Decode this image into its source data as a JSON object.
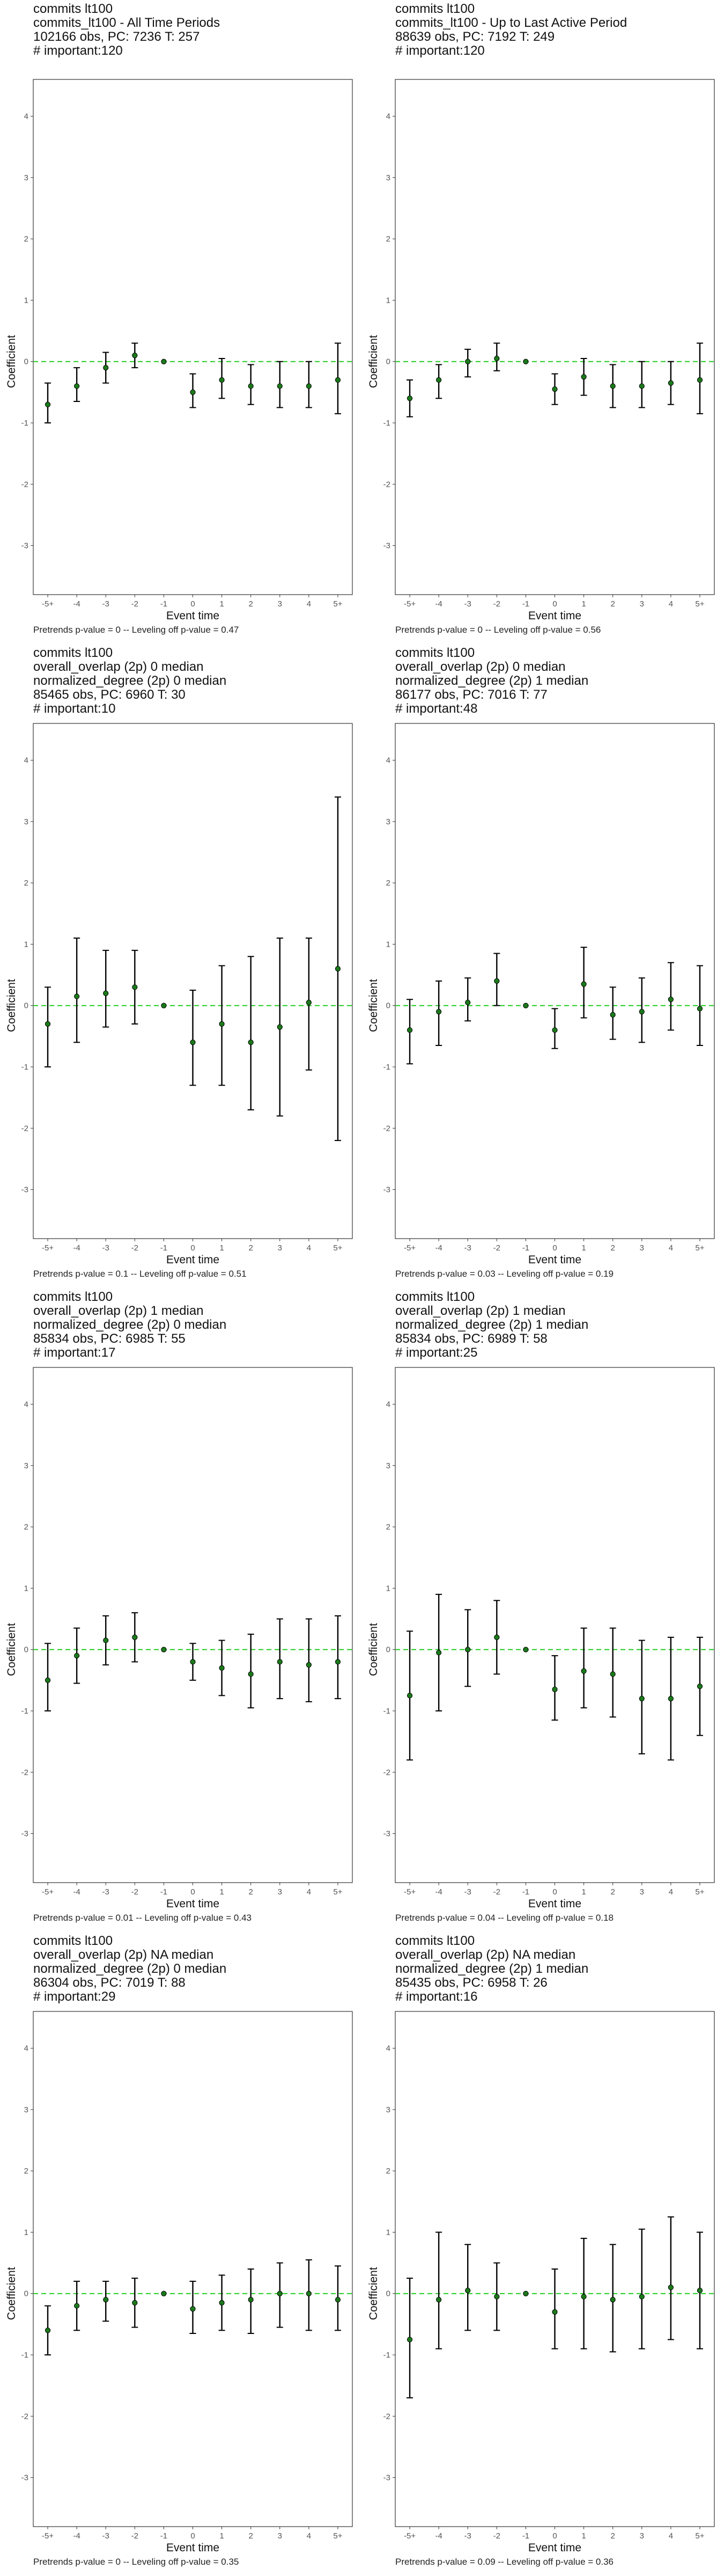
{
  "colors": {
    "zero_line": "#22cc22",
    "point_fill": "#1a7a1a",
    "error_bar": "#000000",
    "frame": "#333333"
  },
  "chart_data": [
    {
      "type": "scatter",
      "title_lines": [
        "commits lt100",
        "commits_lt100 - All Time Periods",
        "102166 obs, PC: 7236 T: 257",
        "# important:120"
      ],
      "footnote": "Pretrends p-value = 0 -- Leveling off p-value = 0.47",
      "xlabel": "Event time",
      "ylabel": "Coefficient",
      "categories": [
        "-5+",
        "-4",
        "-3",
        "-2",
        "-1",
        "0",
        "1",
        "2",
        "3",
        "4",
        "5+"
      ],
      "yticks": [
        -3,
        -2,
        -1,
        0,
        1,
        2,
        3,
        4
      ],
      "ylim": [
        -3.8,
        4.6
      ],
      "values": [
        -0.7,
        -0.4,
        -0.1,
        0.1,
        0.0,
        -0.5,
        -0.3,
        -0.4,
        -0.4,
        -0.4,
        -0.3
      ],
      "ci": [
        [
          -1.0,
          -0.35
        ],
        [
          -0.65,
          -0.1
        ],
        [
          -0.35,
          0.15
        ],
        [
          -0.1,
          0.3
        ],
        [
          0,
          0
        ],
        [
          -0.75,
          -0.2
        ],
        [
          -0.6,
          0.05
        ],
        [
          -0.7,
          -0.05
        ],
        [
          -0.75,
          0.0
        ],
        [
          -0.75,
          0.0
        ],
        [
          -0.85,
          0.3
        ]
      ],
      "zero_line": true,
      "grid": false
    },
    {
      "type": "scatter",
      "title_lines": [
        "commits lt100",
        "commits_lt100 - Up to Last Active Period",
        "88639 obs, PC: 7192 T: 249",
        "# important:120"
      ],
      "footnote": "Pretrends p-value = 0 -- Leveling off p-value = 0.56",
      "xlabel": "Event time",
      "ylabel": "Coefficient",
      "categories": [
        "-5+",
        "-4",
        "-3",
        "-2",
        "-1",
        "0",
        "1",
        "2",
        "3",
        "4",
        "5+"
      ],
      "yticks": [
        -3,
        -2,
        -1,
        0,
        1,
        2,
        3,
        4
      ],
      "ylim": [
        -3.8,
        4.6
      ],
      "values": [
        -0.6,
        -0.3,
        0.0,
        0.05,
        0.0,
        -0.45,
        -0.25,
        -0.4,
        -0.4,
        -0.35,
        -0.3
      ],
      "ci": [
        [
          -0.9,
          -0.3
        ],
        [
          -0.6,
          -0.05
        ],
        [
          -0.25,
          0.2
        ],
        [
          -0.15,
          0.3
        ],
        [
          0,
          0
        ],
        [
          -0.7,
          -0.2
        ],
        [
          -0.55,
          0.05
        ],
        [
          -0.75,
          -0.05
        ],
        [
          -0.75,
          0.0
        ],
        [
          -0.7,
          0.0
        ],
        [
          -0.85,
          0.3
        ]
      ],
      "zero_line": true,
      "grid": false
    },
    {
      "type": "scatter",
      "title_lines": [
        "commits lt100",
        "overall_overlap (2p) 0 median",
        "normalized_degree (2p) 0 median",
        "85465 obs, PC: 6960 T: 30",
        "# important:10"
      ],
      "footnote": "Pretrends p-value = 0.1 -- Leveling off p-value = 0.51",
      "xlabel": "Event time",
      "ylabel": "Coefficient",
      "categories": [
        "-5+",
        "-4",
        "-3",
        "-2",
        "-1",
        "0",
        "1",
        "2",
        "3",
        "4",
        "5+"
      ],
      "yticks": [
        -3,
        -2,
        -1,
        0,
        1,
        2,
        3,
        4
      ],
      "ylim": [
        -3.8,
        4.6
      ],
      "values": [
        -0.3,
        0.15,
        0.2,
        0.3,
        0.0,
        -0.6,
        -0.3,
        -0.6,
        -0.35,
        0.05,
        0.6
      ],
      "ci": [
        [
          -1.0,
          0.3
        ],
        [
          -0.6,
          1.1
        ],
        [
          -0.35,
          0.9
        ],
        [
          -0.3,
          0.9
        ],
        [
          0,
          0
        ],
        [
          -1.3,
          0.25
        ],
        [
          -1.3,
          0.65
        ],
        [
          -1.7,
          0.8
        ],
        [
          -1.8,
          1.1
        ],
        [
          -1.05,
          1.1
        ],
        [
          -2.2,
          3.4
        ]
      ],
      "zero_line": true,
      "grid": false
    },
    {
      "type": "scatter",
      "title_lines": [
        "commits lt100",
        "overall_overlap (2p) 0 median",
        "normalized_degree (2p) 1 median",
        "86177 obs, PC: 7016 T: 77",
        "# important:48"
      ],
      "footnote": "Pretrends p-value = 0.03 -- Leveling off p-value = 0.19",
      "xlabel": "Event time",
      "ylabel": "Coefficient",
      "categories": [
        "-5+",
        "-4",
        "-3",
        "-2",
        "-1",
        "0",
        "1",
        "2",
        "3",
        "4",
        "5+"
      ],
      "yticks": [
        -3,
        -2,
        -1,
        0,
        1,
        2,
        3,
        4
      ],
      "ylim": [
        -3.8,
        4.6
      ],
      "values": [
        -0.4,
        -0.1,
        0.05,
        0.4,
        0.0,
        -0.4,
        0.35,
        -0.15,
        -0.1,
        0.1,
        -0.05
      ],
      "ci": [
        [
          -0.95,
          0.1
        ],
        [
          -0.65,
          0.4
        ],
        [
          -0.25,
          0.45
        ],
        [
          0.0,
          0.85
        ],
        [
          0,
          0
        ],
        [
          -0.7,
          -0.05
        ],
        [
          -0.2,
          0.95
        ],
        [
          -0.55,
          0.3
        ],
        [
          -0.6,
          0.45
        ],
        [
          -0.4,
          0.7
        ],
        [
          -0.65,
          0.65
        ]
      ],
      "zero_line": true,
      "grid": false
    },
    {
      "type": "scatter",
      "title_lines": [
        "commits lt100",
        "overall_overlap (2p) 1 median",
        "normalized_degree (2p) 0 median",
        "85834 obs, PC: 6985 T: 55",
        "# important:17"
      ],
      "footnote": "Pretrends p-value = 0.01 -- Leveling off p-value = 0.43",
      "xlabel": "Event time",
      "ylabel": "Coefficient",
      "categories": [
        "-5+",
        "-4",
        "-3",
        "-2",
        "-1",
        "0",
        "1",
        "2",
        "3",
        "4",
        "5+"
      ],
      "yticks": [
        -3,
        -2,
        -1,
        0,
        1,
        2,
        3,
        4
      ],
      "ylim": [
        -3.8,
        4.6
      ],
      "values": [
        -0.5,
        -0.1,
        0.15,
        0.2,
        0.0,
        -0.2,
        -0.3,
        -0.4,
        -0.2,
        -0.25,
        -0.2
      ],
      "ci": [
        [
          -1.0,
          0.1
        ],
        [
          -0.55,
          0.35
        ],
        [
          -0.25,
          0.55
        ],
        [
          -0.2,
          0.6
        ],
        [
          0,
          0
        ],
        [
          -0.5,
          0.1
        ],
        [
          -0.75,
          0.15
        ],
        [
          -0.95,
          0.25
        ],
        [
          -0.8,
          0.5
        ],
        [
          -0.85,
          0.5
        ],
        [
          -0.8,
          0.55
        ]
      ],
      "zero_line": true,
      "grid": false
    },
    {
      "type": "scatter",
      "title_lines": [
        "commits lt100",
        "overall_overlap (2p) 1 median",
        "normalized_degree (2p) 1 median",
        "85834 obs, PC: 6989 T: 58",
        "# important:25"
      ],
      "footnote": "Pretrends p-value = 0.04 -- Leveling off p-value = 0.18",
      "xlabel": "Event time",
      "ylabel": "Coefficient",
      "categories": [
        "-5+",
        "-4",
        "-3",
        "-2",
        "-1",
        "0",
        "1",
        "2",
        "3",
        "4",
        "5+"
      ],
      "yticks": [
        -3,
        -2,
        -1,
        0,
        1,
        2,
        3,
        4
      ],
      "ylim": [
        -3.8,
        4.6
      ],
      "values": [
        -0.75,
        -0.05,
        0.0,
        0.2,
        0.0,
        -0.65,
        -0.35,
        -0.4,
        -0.8,
        -0.8,
        -0.6
      ],
      "ci": [
        [
          -1.8,
          0.3
        ],
        [
          -1.0,
          0.9
        ],
        [
          -0.6,
          0.65
        ],
        [
          -0.4,
          0.8
        ],
        [
          0,
          0
        ],
        [
          -1.15,
          -0.1
        ],
        [
          -0.95,
          0.35
        ],
        [
          -1.1,
          0.35
        ],
        [
          -1.7,
          0.15
        ],
        [
          -1.8,
          0.2
        ],
        [
          -1.4,
          0.2
        ]
      ],
      "zero_line": true,
      "grid": false
    },
    {
      "type": "scatter",
      "title_lines": [
        "commits lt100",
        "overall_overlap (2p) NA median",
        "normalized_degree (2p) 0 median",
        "86304 obs, PC: 7019 T: 88",
        "# important:29"
      ],
      "footnote": "Pretrends p-value = 0 -- Leveling off p-value = 0.35",
      "xlabel": "Event time",
      "ylabel": "Coefficient",
      "categories": [
        "-5+",
        "-4",
        "-3",
        "-2",
        "-1",
        "0",
        "1",
        "2",
        "3",
        "4",
        "5+"
      ],
      "yticks": [
        -3,
        -2,
        -1,
        0,
        1,
        2,
        3,
        4
      ],
      "ylim": [
        -3.8,
        4.6
      ],
      "values": [
        -0.6,
        -0.2,
        -0.1,
        -0.15,
        0.0,
        -0.25,
        -0.15,
        -0.1,
        0.0,
        0.0,
        -0.1
      ],
      "ci": [
        [
          -1.0,
          -0.2
        ],
        [
          -0.6,
          0.2
        ],
        [
          -0.45,
          0.2
        ],
        [
          -0.55,
          0.25
        ],
        [
          0,
          0
        ],
        [
          -0.65,
          0.2
        ],
        [
          -0.6,
          0.3
        ],
        [
          -0.65,
          0.4
        ],
        [
          -0.55,
          0.5
        ],
        [
          -0.6,
          0.55
        ],
        [
          -0.6,
          0.45
        ]
      ],
      "zero_line": true,
      "grid": false
    },
    {
      "type": "scatter",
      "title_lines": [
        "commits lt100",
        "overall_overlap (2p) NA median",
        "normalized_degree (2p) 1 median",
        "85435 obs, PC: 6958 T: 26",
        "# important:16"
      ],
      "footnote": "Pretrends p-value = 0.09 -- Leveling off p-value = 0.36",
      "xlabel": "Event time",
      "ylabel": "Coefficient",
      "categories": [
        "-5+",
        "-4",
        "-3",
        "-2",
        "-1",
        "0",
        "1",
        "2",
        "3",
        "4",
        "5+"
      ],
      "yticks": [
        -3,
        -2,
        -1,
        0,
        1,
        2,
        3,
        4
      ],
      "ylim": [
        -3.8,
        4.6
      ],
      "values": [
        -0.75,
        -0.1,
        0.05,
        -0.05,
        0.0,
        -0.3,
        -0.05,
        -0.1,
        -0.05,
        0.1,
        0.05
      ],
      "ci": [
        [
          -1.7,
          0.25
        ],
        [
          -0.9,
          1.0
        ],
        [
          -0.6,
          0.8
        ],
        [
          -0.6,
          0.5
        ],
        [
          0,
          0
        ],
        [
          -0.9,
          0.4
        ],
        [
          -0.9,
          0.9
        ],
        [
          -0.95,
          0.8
        ],
        [
          -0.9,
          1.05
        ],
        [
          -0.75,
          1.25
        ],
        [
          -0.9,
          1.0
        ]
      ],
      "zero_line": true,
      "grid": false
    }
  ]
}
